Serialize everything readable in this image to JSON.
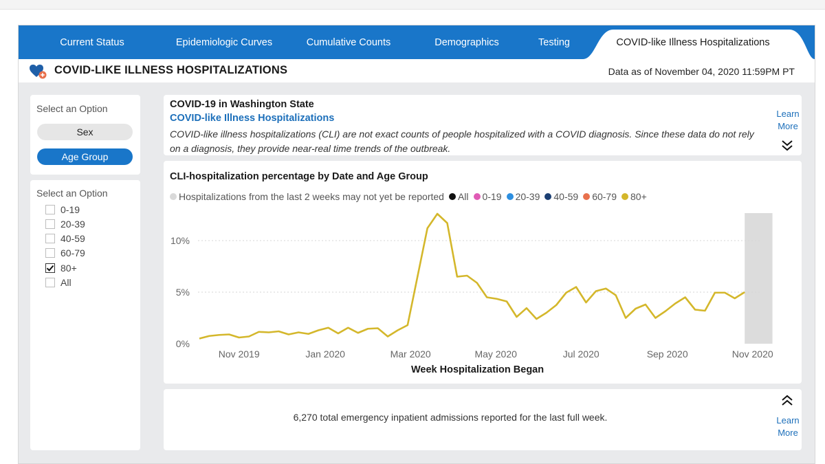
{
  "tabs": [
    {
      "label": "Current Status"
    },
    {
      "label": "Epidemiologic Curves"
    },
    {
      "label": "Cumulative Counts"
    },
    {
      "label": "Demographics"
    },
    {
      "label": "Testing"
    },
    {
      "label": "COVID-like Illness Hospitalizations"
    }
  ],
  "header": {
    "title": "COVID-LIKE ILLNESS HOSPITALIZATIONS",
    "data_as_of": "Data as of November 04, 2020 11:59PM PT"
  },
  "filters": {
    "group_select": {
      "label": "Select an Option",
      "options": [
        "Sex",
        "Age Group"
      ],
      "selected": "Age Group"
    },
    "age_select": {
      "label": "Select an Option",
      "options": [
        {
          "label": "0-19",
          "checked": false
        },
        {
          "label": "20-39",
          "checked": false
        },
        {
          "label": "40-59",
          "checked": false
        },
        {
          "label": "60-79",
          "checked": false
        },
        {
          "label": "80+",
          "checked": true
        },
        {
          "label": "All",
          "checked": false
        }
      ]
    }
  },
  "info": {
    "title": "COVID-19 in Washington State",
    "link": "COVID-like Illness Hospitalizations",
    "description": "COVID-like illness hospitalizations (CLI) are not exact counts of people hospitalized with a COVID diagnosis. Since these data do not rely on a diagnosis, they provide near-real time trends of the outbreak.",
    "learn_more_line1": "Learn",
    "learn_more_line2": "More"
  },
  "chart": {
    "title": "CLI-hospitalization percentage by Date and Age Group",
    "legend_note": "Hospitalizations from the last 2 weeks may not yet be reported",
    "legend": [
      {
        "label": "All",
        "color": "#111111"
      },
      {
        "label": "0-19",
        "color": "#e05bb5"
      },
      {
        "label": "20-39",
        "color": "#2d8fe0"
      },
      {
        "label": "40-59",
        "color": "#1b3f73"
      },
      {
        "label": "60-79",
        "color": "#e8714d"
      },
      {
        "label": "80+",
        "color": "#d4b72b"
      }
    ],
    "xlabel": "Week Hospitalization Began"
  },
  "chart_data": {
    "type": "line",
    "title": "CLI-hospitalization percentage by Date and Age Group",
    "xlabel": "Week Hospitalization Began",
    "ylabel": "",
    "y_ticks": [
      "0%",
      "5%",
      "10%"
    ],
    "y_tick_values": [
      0,
      5,
      10
    ],
    "ylim": [
      0,
      12.8
    ],
    "x_ticks": [
      "Nov 2019",
      "Jan 2020",
      "Mar 2020",
      "May 2020",
      "Jul 2020",
      "Sep 2020",
      "Nov 2020"
    ],
    "x_tick_week_index": [
      4,
      12.7,
      21.3,
      29.9,
      38.5,
      47.2,
      55.8
    ],
    "x_week_range": [
      0,
      57
    ],
    "shaded_week_range": [
      55,
      57.8
    ],
    "shaded_note": "Hospitalizations from the last 2 weeks may not yet be reported",
    "series": [
      {
        "name": "80+",
        "color": "#d4b72b",
        "values": [
          0.5,
          0.75,
          0.85,
          0.9,
          0.6,
          0.7,
          1.15,
          1.1,
          1.2,
          0.9,
          1.1,
          0.95,
          1.3,
          1.55,
          1.0,
          1.55,
          1.05,
          1.45,
          1.5,
          0.7,
          1.3,
          1.8,
          6.5,
          11.2,
          12.6,
          11.7,
          6.5,
          6.6,
          5.9,
          4.5,
          4.35,
          4.1,
          2.6,
          3.45,
          2.4,
          3.0,
          3.75,
          4.95,
          5.5,
          4.0,
          5.1,
          5.35,
          4.7,
          2.5,
          3.4,
          3.8,
          2.5,
          3.15,
          3.9,
          4.5,
          3.3,
          3.2,
          4.95,
          4.95,
          4.4,
          5.0
        ]
      }
    ]
  },
  "summary": {
    "text": "6,270 total emergency inpatient admissions reported for the last full week."
  }
}
